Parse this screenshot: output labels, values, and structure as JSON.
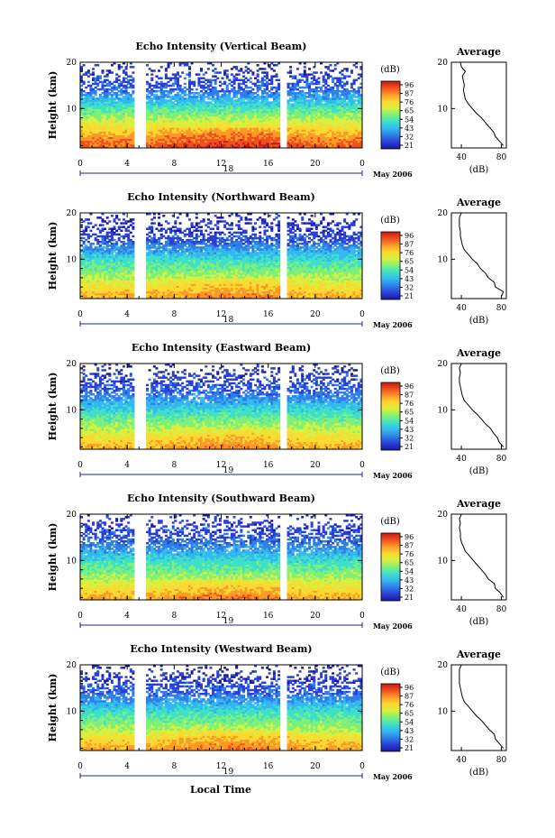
{
  "figure": {
    "month_label": "May 2006",
    "xlabel": "Local Time",
    "colorbar_unit": "(dB)",
    "colorbar_ticks": [
      "96",
      "87",
      "76",
      "65",
      "54",
      "43",
      "32",
      "21"
    ],
    "colors": {
      "colormap": [
        "#1a1aa0",
        "#2a3fd8",
        "#2e7fe8",
        "#33b8f0",
        "#3fe0c8",
        "#7ef07a",
        "#d8f040",
        "#fcd830",
        "#fc9a28",
        "#f05020",
        "#c81818"
      ],
      "frame": "#000000",
      "date_marker": "#1a2a8a"
    }
  },
  "chart_data": [
    {
      "type": "heatmap",
      "title": "Echo Intensity (Vertical Beam)",
      "ylabel": "Height (km)",
      "x_ticks": [
        "0",
        "4",
        "8",
        "12",
        "16",
        "20",
        "0"
      ],
      "y_ticks": [
        "20",
        "10"
      ],
      "xlim": [
        0,
        24
      ],
      "ylim": [
        1.5,
        20
      ],
      "date_label": "18",
      "data_gaps_hours": [
        [
          4.6,
          5.6
        ],
        [
          17.0,
          17.5
        ]
      ],
      "intensity_db_by_height": {
        "height_km": [
          2,
          4,
          6,
          8,
          10,
          12,
          14,
          16,
          18,
          20
        ],
        "db": [
          85,
          78,
          70,
          62,
          54,
          45,
          36,
          32,
          30,
          28
        ]
      },
      "profile": {
        "title": "Average",
        "xlabel": "(dB)",
        "x_ticks": [
          "40",
          "80"
        ],
        "y_ticks": [
          "20",
          "10"
        ],
        "xlim": [
          30,
          85
        ],
        "ylim": [
          1.5,
          20
        ],
        "height_km": [
          2.0,
          3.0,
          4.0,
          5.0,
          6.0,
          7.0,
          8.0,
          9.0,
          10.0,
          11.0,
          12.0,
          13.0,
          14.0,
          15.0,
          16.0,
          17.0,
          18.0,
          19.0,
          20.0
        ],
        "db": [
          82,
          78,
          74,
          72,
          68,
          64,
          60,
          55,
          51,
          47,
          44,
          43,
          42,
          43,
          42,
          41,
          44,
          40,
          39
        ]
      }
    },
    {
      "type": "heatmap",
      "title": "Echo Intensity (Northward Beam)",
      "ylabel": "Height (km)",
      "x_ticks": [
        "0",
        "4",
        "8",
        "12",
        "16",
        "20",
        "0"
      ],
      "y_ticks": [
        "20",
        "10"
      ],
      "xlim": [
        0,
        24
      ],
      "ylim": [
        1.5,
        20
      ],
      "date_label": "18",
      "data_gaps_hours": [
        [
          4.6,
          5.6
        ],
        [
          17.0,
          17.5
        ]
      ],
      "intensity_db_by_height": {
        "height_km": [
          2,
          4,
          6,
          8,
          10,
          12,
          14,
          16,
          18,
          20
        ],
        "db": [
          76,
          70,
          63,
          57,
          51,
          42,
          34,
          30,
          28,
          26
        ]
      },
      "profile": {
        "title": "Average",
        "xlabel": "(dB)",
        "x_ticks": [
          "40",
          "80"
        ],
        "y_ticks": [
          "20",
          "10"
        ],
        "xlim": [
          30,
          85
        ],
        "ylim": [
          1.5,
          20
        ],
        "height_km": [
          2.0,
          3.0,
          4.0,
          5.0,
          6.0,
          7.0,
          8.0,
          9.0,
          10.0,
          11.0,
          12.0,
          13.0,
          14.0,
          15.0,
          16.0,
          17.0,
          18.0,
          19.0,
          20.0
        ],
        "db": [
          80,
          82,
          74,
          73,
          67,
          64,
          59,
          56,
          51,
          47,
          43,
          41,
          40,
          39,
          39,
          38,
          38,
          38,
          40
        ]
      }
    },
    {
      "type": "heatmap",
      "title": "Echo Intensity (Eastward Beam)",
      "ylabel": "Height (km)",
      "x_ticks": [
        "0",
        "4",
        "8",
        "12",
        "16",
        "20",
        "0"
      ],
      "y_ticks": [
        "20",
        "10"
      ],
      "xlim": [
        0,
        24
      ],
      "ylim": [
        1.5,
        20
      ],
      "date_label": "19",
      "data_gaps_hours": [
        [
          4.6,
          5.6
        ],
        [
          17.0,
          17.5
        ]
      ],
      "intensity_db_by_height": {
        "height_km": [
          2,
          4,
          6,
          8,
          10,
          12,
          14,
          16,
          18,
          20
        ],
        "db": [
          76,
          70,
          63,
          57,
          50,
          42,
          35,
          32,
          30,
          28
        ]
      },
      "profile": {
        "title": "Average",
        "xlabel": "(dB)",
        "x_ticks": [
          "40",
          "80"
        ],
        "y_ticks": [
          "20",
          "10"
        ],
        "xlim": [
          30,
          85
        ],
        "ylim": [
          1.5,
          20
        ],
        "height_km": [
          2.0,
          3.0,
          4.0,
          5.0,
          6.0,
          7.0,
          8.0,
          9.0,
          10.0,
          11.0,
          12.0,
          13.0,
          14.0,
          15.0,
          16.0,
          17.0,
          18.0,
          19.0,
          20.0
        ],
        "db": [
          82,
          78,
          76,
          72,
          69,
          64,
          60,
          56,
          51,
          47,
          43,
          41,
          40,
          39,
          38,
          38,
          39,
          38,
          40
        ]
      }
    },
    {
      "type": "heatmap",
      "title": "Echo Intensity (Southward Beam)",
      "ylabel": "Height (km)",
      "x_ticks": [
        "0",
        "4",
        "8",
        "12",
        "16",
        "20",
        "0"
      ],
      "y_ticks": [
        "20",
        "10"
      ],
      "xlim": [
        0,
        24
      ],
      "ylim": [
        1.5,
        20
      ],
      "date_label": "19",
      "data_gaps_hours": [
        [
          4.6,
          5.6
        ],
        [
          17.0,
          17.5
        ]
      ],
      "intensity_db_by_height": {
        "height_km": [
          2,
          4,
          6,
          8,
          10,
          12,
          14,
          16,
          18,
          20
        ],
        "db": [
          77,
          70,
          63,
          57,
          51,
          43,
          36,
          32,
          30,
          28
        ]
      },
      "profile": {
        "title": "Average",
        "xlabel": "(dB)",
        "x_ticks": [
          "40",
          "80"
        ],
        "y_ticks": [
          "20",
          "10"
        ],
        "xlim": [
          30,
          85
        ],
        "ylim": [
          1.5,
          20
        ],
        "height_km": [
          2.0,
          3.0,
          4.0,
          5.0,
          6.0,
          7.0,
          8.0,
          9.0,
          10.0,
          11.0,
          12.0,
          13.0,
          14.0,
          15.0,
          16.0,
          17.0,
          18.0,
          19.0,
          20.0
        ],
        "db": [
          82,
          79,
          74,
          73,
          67,
          64,
          60,
          56,
          52,
          48,
          44,
          42,
          40,
          39,
          39,
          38,
          39,
          38,
          40
        ]
      }
    },
    {
      "type": "heatmap",
      "title": "Echo Intensity (Westward Beam)",
      "ylabel": "Height (km)",
      "x_ticks": [
        "0",
        "4",
        "8",
        "12",
        "16",
        "20",
        "0"
      ],
      "y_ticks": [
        "20",
        "10"
      ],
      "xlim": [
        0,
        24
      ],
      "ylim": [
        1.5,
        20
      ],
      "date_label": "19",
      "data_gaps_hours": [
        [
          4.6,
          5.6
        ],
        [
          17.0,
          17.5
        ]
      ],
      "intensity_db_by_height": {
        "height_km": [
          2,
          4,
          6,
          8,
          10,
          12,
          14,
          16,
          18,
          20
        ],
        "db": [
          77,
          71,
          63,
          57,
          51,
          43,
          35,
          31,
          29,
          27
        ]
      },
      "profile": {
        "title": "Average",
        "xlabel": "(dB)",
        "x_ticks": [
          "40",
          "80"
        ],
        "y_ticks": [
          "20",
          "10"
        ],
        "xlim": [
          30,
          85
        ],
        "ylim": [
          1.5,
          20
        ],
        "height_km": [
          2.0,
          3.0,
          4.0,
          5.0,
          6.0,
          7.0,
          8.0,
          9.0,
          10.0,
          11.0,
          12.0,
          13.0,
          14.0,
          15.0,
          16.0,
          17.0,
          18.0,
          19.0,
          20.0
        ],
        "db": [
          82,
          78,
          74,
          73,
          68,
          64,
          60,
          55,
          51,
          47,
          43,
          41,
          40,
          39,
          38,
          38,
          38,
          38,
          40
        ]
      }
    }
  ]
}
